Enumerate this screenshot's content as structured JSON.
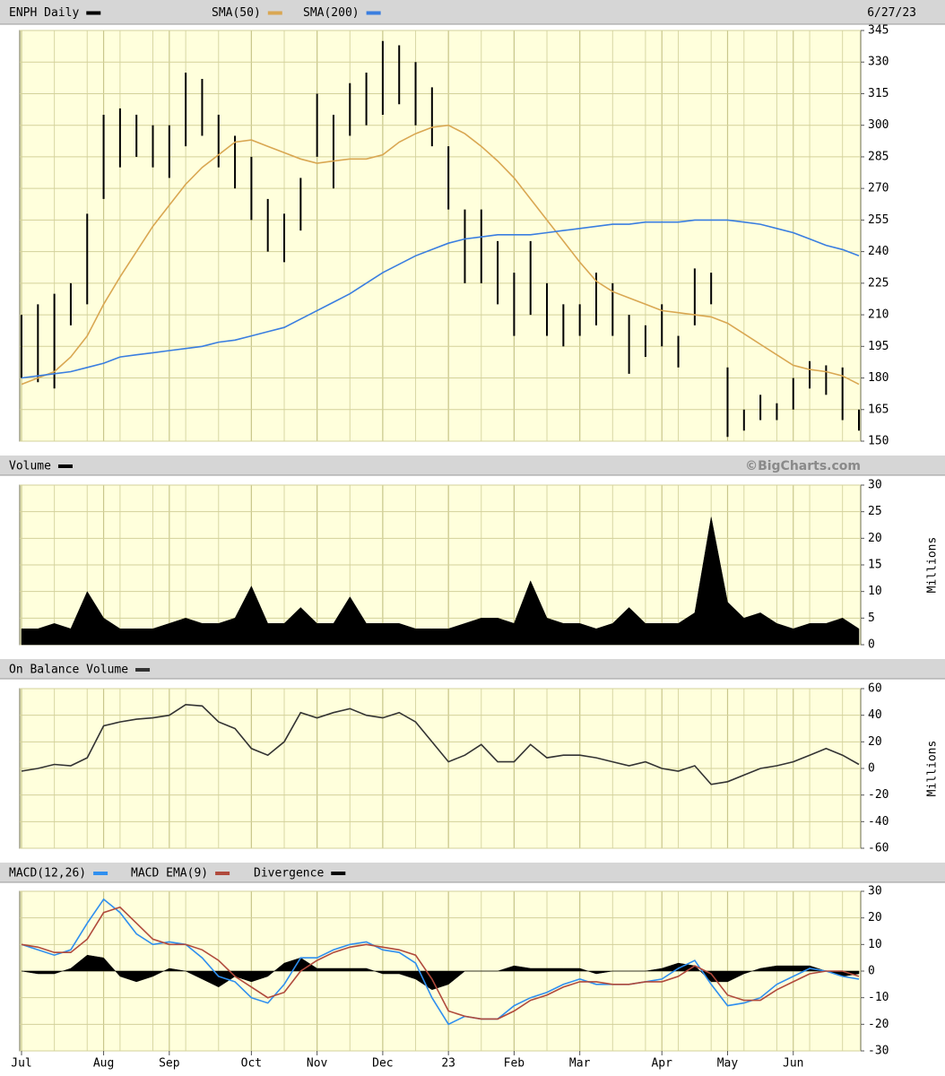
{
  "chart_data": [
    {
      "type": "ohlc",
      "date": "6/27/23",
      "series": [
        {
          "name": "ENPH Daily",
          "color": "#000000",
          "style": "bars",
          "high": [
            210,
            215,
            220,
            225,
            258,
            305,
            308,
            305,
            300,
            300,
            325,
            322,
            305,
            295,
            285,
            265,
            258,
            275,
            315,
            305,
            320,
            325,
            340,
            338,
            330,
            318,
            290,
            260,
            260,
            245,
            230,
            245,
            225,
            215,
            215,
            230,
            225,
            210,
            205,
            215,
            200,
            232,
            230,
            185,
            165,
            172,
            168,
            180,
            188,
            186,
            185,
            165
          ],
          "low": [
            180,
            178,
            175,
            205,
            215,
            265,
            280,
            285,
            280,
            275,
            290,
            295,
            280,
            270,
            255,
            240,
            235,
            250,
            285,
            270,
            295,
            300,
            305,
            310,
            300,
            290,
            260,
            225,
            225,
            215,
            200,
            210,
            200,
            195,
            200,
            205,
            200,
            182,
            190,
            195,
            185,
            205,
            215,
            152,
            155,
            160,
            160,
            165,
            175,
            172,
            160,
            155
          ]
        },
        {
          "name": "SMA(50)",
          "color": "#d9a752",
          "style": "line",
          "values": [
            177,
            180,
            183,
            190,
            200,
            215,
            228,
            240,
            252,
            262,
            272,
            280,
            286,
            292,
            293,
            290,
            287,
            284,
            282,
            283,
            284,
            284,
            286,
            292,
            296,
            299,
            300,
            296,
            290,
            283,
            275,
            265,
            255,
            245,
            235,
            226,
            221,
            218,
            215,
            212,
            211,
            210,
            209,
            206,
            201,
            196,
            191,
            186,
            184,
            183,
            181,
            177
          ]
        },
        {
          "name": "SMA(200)",
          "color": "#3a7ee0",
          "style": "line",
          "values": [
            180,
            181,
            182,
            183,
            185,
            187,
            190,
            191,
            192,
            193,
            194,
            195,
            197,
            198,
            200,
            202,
            204,
            208,
            212,
            216,
            220,
            225,
            230,
            234,
            238,
            241,
            244,
            246,
            247,
            248,
            248,
            248,
            249,
            250,
            251,
            252,
            253,
            253,
            254,
            254,
            254,
            255,
            255,
            255,
            254,
            253,
            251,
            249,
            246,
            243,
            241,
            238
          ]
        }
      ],
      "ylim": [
        150,
        345
      ],
      "yticks": [
        150,
        165,
        180,
        195,
        210,
        225,
        240,
        255,
        270,
        285,
        300,
        315,
        330,
        345
      ],
      "grid": true
    },
    {
      "type": "area",
      "credit": "©BigCharts.com",
      "ylabel": "Millions",
      "series": [
        {
          "name": "Volume",
          "color": "#000000",
          "style": "area",
          "values": [
            3,
            3,
            4,
            3,
            10,
            5,
            3,
            3,
            3,
            4,
            5,
            4,
            4,
            5,
            11,
            4,
            4,
            7,
            4,
            4,
            9,
            4,
            4,
            4,
            3,
            3,
            3,
            4,
            5,
            5,
            4,
            12,
            5,
            4,
            4,
            3,
            4,
            7,
            4,
            4,
            4,
            6,
            24,
            8,
            5,
            6,
            4,
            3,
            4,
            4,
            5,
            3
          ]
        }
      ],
      "ylim": [
        0,
        30
      ],
      "yticks": [
        0,
        5,
        10,
        15,
        20,
        25,
        30
      ],
      "grid": true
    },
    {
      "type": "line",
      "ylabel": "Millions",
      "series": [
        {
          "name": "On Balance Volume",
          "color": "#333333",
          "style": "line",
          "values": [
            -2,
            0,
            3,
            2,
            8,
            32,
            35,
            37,
            38,
            40,
            48,
            47,
            35,
            30,
            15,
            10,
            20,
            42,
            38,
            42,
            45,
            40,
            38,
            42,
            35,
            20,
            5,
            10,
            18,
            5,
            5,
            18,
            8,
            10,
            10,
            8,
            5,
            2,
            5,
            0,
            -2,
            2,
            -12,
            -10,
            -5,
            0,
            2,
            5,
            10,
            15,
            10,
            3
          ]
        }
      ],
      "ylim": [
        -60,
        60
      ],
      "yticks": [
        -60,
        -40,
        -20,
        0,
        20,
        40,
        60
      ],
      "grid": true
    },
    {
      "type": "line",
      "series": [
        {
          "name": "MACD(12,26)",
          "color": "#2f8fef",
          "style": "line",
          "values": [
            10,
            8,
            6,
            8,
            18,
            27,
            22,
            14,
            10,
            11,
            10,
            5,
            -2,
            -4,
            -10,
            -12,
            -5,
            5,
            5,
            8,
            10,
            11,
            8,
            7,
            3,
            -10,
            -20,
            -17,
            -18,
            -18,
            -13,
            -10,
            -8,
            -5,
            -3,
            -5,
            -5,
            -5,
            -4,
            -3,
            1,
            4,
            -5,
            -13,
            -12,
            -10,
            -5,
            -2,
            1,
            0,
            -2,
            -3
          ]
        },
        {
          "name": "MACD EMA(9)",
          "color": "#b04a3c",
          "style": "line",
          "values": [
            10,
            9,
            7,
            7,
            12,
            22,
            24,
            18,
            12,
            10,
            10,
            8,
            4,
            -2,
            -6,
            -10,
            -8,
            0,
            4,
            7,
            9,
            10,
            9,
            8,
            6,
            -3,
            -15,
            -17,
            -18,
            -18,
            -15,
            -11,
            -9,
            -6,
            -4,
            -4,
            -5,
            -5,
            -4,
            -4,
            -2,
            2,
            -1,
            -9,
            -11,
            -11,
            -7,
            -4,
            -1,
            0,
            0,
            -2
          ]
        },
        {
          "name": "Divergence",
          "color": "#000000",
          "style": "area",
          "values": [
            0,
            -1,
            -1,
            1,
            6,
            5,
            -2,
            -4,
            -2,
            1,
            0,
            -3,
            -6,
            -2,
            -4,
            -2,
            3,
            5,
            1,
            1,
            1,
            1,
            -1,
            -1,
            -3,
            -7,
            -5,
            0,
            0,
            0,
            2,
            1,
            1,
            1,
            1,
            -1,
            0,
            0,
            0,
            1,
            3,
            2,
            -4,
            -4,
            -1,
            1,
            2,
            2,
            2,
            0,
            -2,
            -1
          ]
        }
      ],
      "categories": [
        "Jul",
        null,
        null,
        null,
        null,
        "Aug",
        null,
        null,
        null,
        "Sep",
        null,
        null,
        null,
        null,
        "Oct",
        null,
        null,
        null,
        "Nov",
        null,
        null,
        null,
        "Dec",
        null,
        null,
        null,
        "23",
        null,
        null,
        null,
        "Feb",
        null,
        null,
        null,
        "Mar",
        null,
        null,
        null,
        null,
        "Apr",
        null,
        null,
        null,
        "May",
        null,
        null,
        null,
        "Jun",
        null,
        null,
        null,
        null
      ],
      "ylim": [
        -30,
        30
      ],
      "yticks": [
        -30,
        -20,
        -10,
        0,
        10,
        20,
        30
      ],
      "grid": true
    }
  ]
}
